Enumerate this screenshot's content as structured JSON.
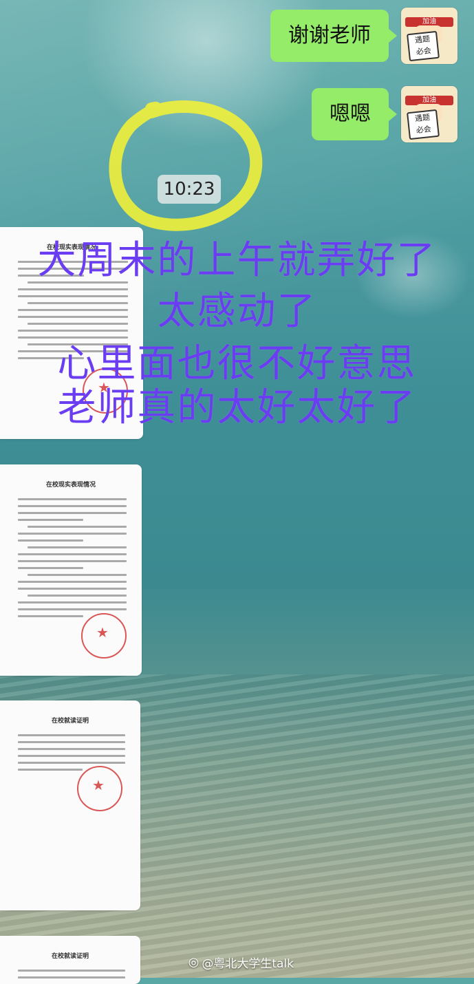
{
  "chat": {
    "messages": [
      {
        "sender": "me",
        "text": "谢谢老师"
      },
      {
        "sender": "me",
        "text": "嗯嗯"
      }
    ],
    "timestamp": "10:23"
  },
  "avatar": {
    "band_text": "加油",
    "sign_line1": "遇题",
    "sign_line2": "必会"
  },
  "documents": [
    {
      "title": "在校现实表现情况"
    },
    {
      "title": "在校现实表现情况"
    },
    {
      "title": "在校就读证明"
    },
    {
      "title": "在校就读证明"
    }
  ],
  "overlay": {
    "line1": "大周末的上午就弄好了",
    "line2": "太感动了",
    "line3": "心里面也很不好意思",
    "line4": "老师真的太好太好了",
    "color": "#6a3df2"
  },
  "watermark": {
    "text": "@粤北大学生talk",
    "icon": "weibo-icon"
  }
}
